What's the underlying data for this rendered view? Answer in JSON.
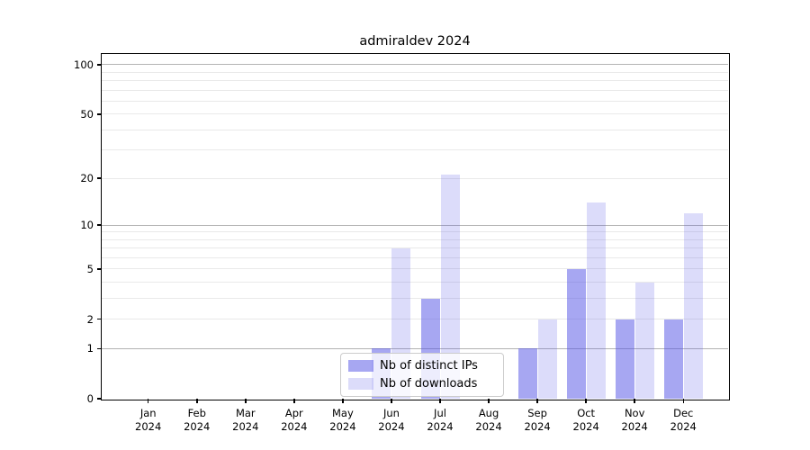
{
  "chart_data": {
    "type": "bar",
    "title": "admiraldev 2024",
    "scale": "log1p",
    "grid": "horizontal",
    "legend_position": "lower center",
    "xlabel": "",
    "ylabel": "",
    "ylim": [
      0,
      115
    ],
    "yticks": [
      0,
      1,
      2,
      5,
      10,
      20,
      50,
      100
    ],
    "gridlines": {
      "major": [
        1,
        10,
        100
      ],
      "minor": [
        2,
        3,
        4,
        5,
        6,
        7,
        8,
        9,
        20,
        30,
        40,
        50,
        60,
        70,
        80,
        90
      ],
      "major_color": "#b3b3b3",
      "minor_color": "#e9e9e9"
    },
    "categories": [
      {
        "month": "Jan",
        "year": "2024"
      },
      {
        "month": "Feb",
        "year": "2024"
      },
      {
        "month": "Mar",
        "year": "2024"
      },
      {
        "month": "Apr",
        "year": "2024"
      },
      {
        "month": "May",
        "year": "2024"
      },
      {
        "month": "Jun",
        "year": "2024"
      },
      {
        "month": "Jul",
        "year": "2024"
      },
      {
        "month": "Aug",
        "year": "2024"
      },
      {
        "month": "Sep",
        "year": "2024"
      },
      {
        "month": "Oct",
        "year": "2024"
      },
      {
        "month": "Nov",
        "year": "2024"
      },
      {
        "month": "Dec",
        "year": "2024"
      }
    ],
    "series": [
      {
        "key": "ips",
        "name": "Nb of distinct IPs",
        "color": "rgba(80,80,230,0.5)",
        "values": [
          0,
          0,
          0,
          0,
          0,
          1,
          3,
          0,
          1,
          5,
          2,
          2
        ]
      },
      {
        "key": "downloads",
        "name": "Nb of downloads",
        "color": "rgba(80,80,230,0.2)",
        "values": [
          0,
          0,
          0,
          0,
          0,
          7,
          21,
          0,
          2,
          14,
          4,
          12
        ]
      }
    ]
  }
}
